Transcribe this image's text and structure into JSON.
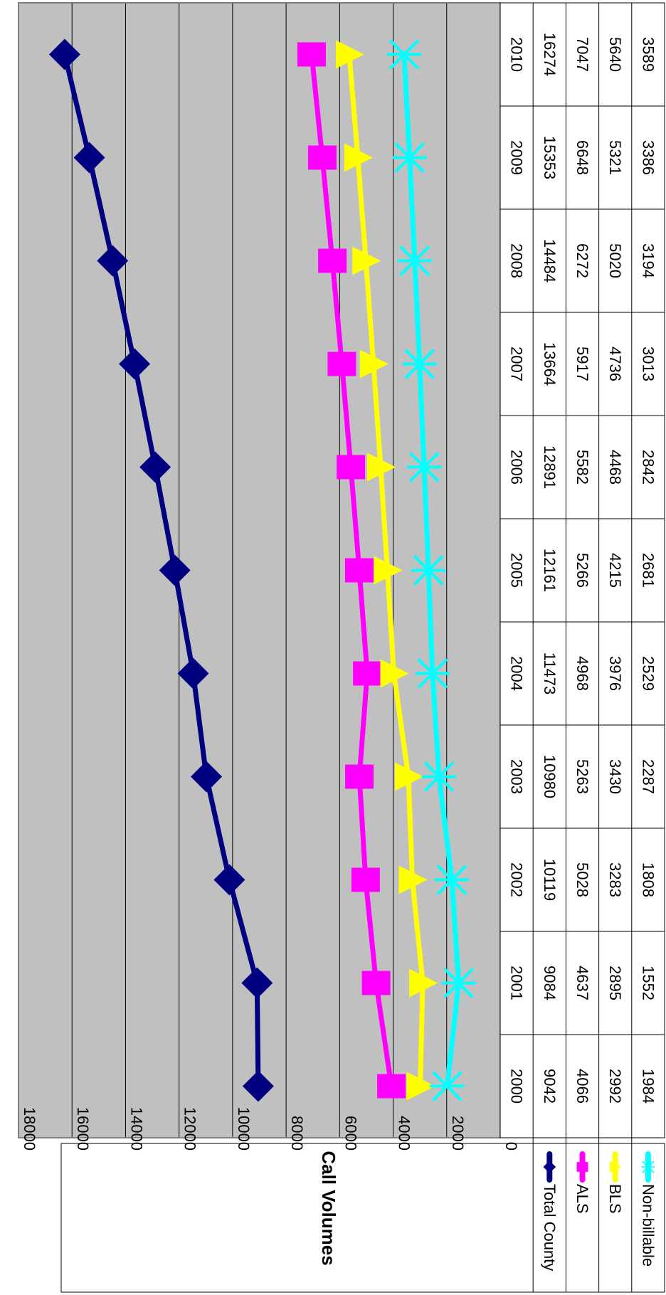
{
  "chart_data": {
    "type": "line",
    "ylabel": "Call Volumes",
    "ylim": [
      0,
      18000
    ],
    "yticks": [
      0,
      2000,
      4000,
      6000,
      8000,
      10000,
      12000,
      14000,
      16000,
      18000
    ],
    "x": [
      "2000",
      "2001",
      "2002",
      "2003",
      "2004",
      "2005",
      "2006",
      "2007",
      "2008",
      "2009",
      "2010"
    ],
    "grid": true,
    "legend": "data-table",
    "plot_background": "#c0c0c0",
    "orientation": "rotated-90-clockwise",
    "series": [
      {
        "name": "Total County",
        "color": "#000080",
        "marker": "diamond",
        "values": [
          9042,
          9084,
          10119,
          10980,
          11473,
          12161,
          12891,
          13664,
          14484,
          15353,
          16274
        ]
      },
      {
        "name": "ALS",
        "color": "#ff00ff",
        "marker": "square",
        "values": [
          4066,
          4637,
          5028,
          5263,
          4968,
          5266,
          5582,
          5917,
          6272,
          6648,
          7047
        ]
      },
      {
        "name": "BLS",
        "color": "#ffff00",
        "marker": "triangle",
        "values": [
          2992,
          2895,
          3283,
          3430,
          3976,
          4215,
          4468,
          4736,
          5020,
          5321,
          5640
        ]
      },
      {
        "name": "Non-billable",
        "color": "#00ffff",
        "marker": "x",
        "values": [
          1984,
          1552,
          1808,
          2287,
          2529,
          2681,
          2842,
          3013,
          3194,
          3386,
          3589
        ]
      }
    ]
  }
}
